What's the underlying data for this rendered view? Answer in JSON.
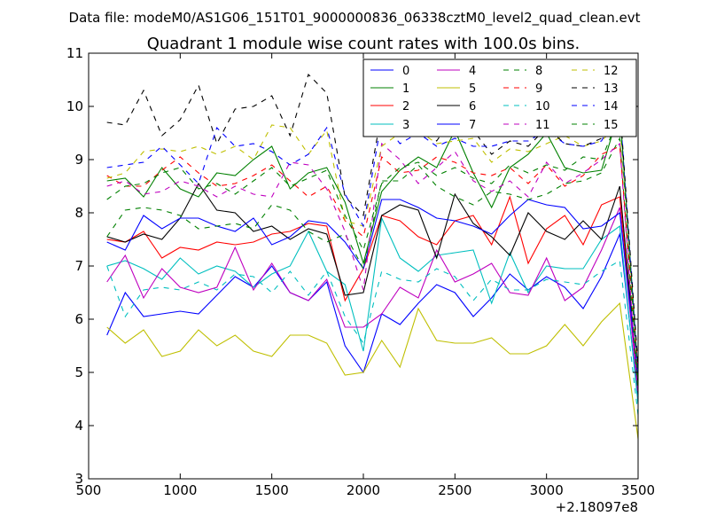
{
  "header": {
    "data_file": "Data file: modeM0/AS1G06_151T01_9000000836_06338cztM0_level2_quad_clean.evt"
  },
  "chart_data": {
    "type": "line",
    "title": "Quadrant 1 module wise count rates with 100.0s bins.",
    "xlabel": "",
    "ylabel": "",
    "x_offset_label": "+2.18097e8",
    "xlim": [
      500,
      3500
    ],
    "ylim": [
      3,
      11
    ],
    "x_ticks": [
      500,
      1000,
      1500,
      2000,
      2500,
      3000,
      3500
    ],
    "x_tick_labels": [
      "500",
      "1000",
      "1500",
      "2000",
      "2500",
      "3000",
      "3500"
    ],
    "y_ticks": [
      3,
      4,
      5,
      6,
      7,
      8,
      9,
      10,
      11
    ],
    "y_tick_labels": [
      "3",
      "4",
      "5",
      "6",
      "7",
      "8",
      "9",
      "10",
      "11"
    ],
    "legend_position": "top-right",
    "x": [
      600,
      700,
      800,
      900,
      1000,
      1100,
      1200,
      1300,
      1400,
      1500,
      1600,
      1700,
      1800,
      1900,
      2000,
      2100,
      2200,
      2300,
      2400,
      2500,
      2600,
      2700,
      2800,
      2900,
      3000,
      3100,
      3200,
      3300,
      3400,
      3500
    ],
    "series": [
      {
        "name": "0",
        "color": "#0000ff",
        "dash": "solid",
        "values": [
          5.7,
          6.5,
          6.05,
          6.1,
          6.15,
          6.1,
          6.45,
          6.8,
          6.6,
          7.0,
          6.5,
          6.35,
          6.7,
          5.5,
          5.0,
          6.1,
          5.9,
          6.3,
          6.65,
          6.5,
          6.05,
          6.4,
          6.85,
          6.55,
          6.8,
          6.6,
          6.2,
          6.8,
          7.6,
          4.5
        ]
      },
      {
        "name": "1",
        "color": "#008000",
        "dash": "solid",
        "values": [
          8.6,
          8.65,
          8.3,
          8.85,
          8.45,
          8.3,
          8.75,
          8.7,
          9.0,
          9.25,
          8.45,
          8.75,
          8.85,
          8.2,
          7.05,
          8.4,
          8.8,
          9.05,
          8.85,
          9.55,
          8.75,
          8.1,
          8.85,
          9.1,
          9.5,
          8.85,
          8.75,
          8.8,
          9.95,
          5.0
        ]
      },
      {
        "name": "2",
        "color": "#ff0000",
        "dash": "solid",
        "values": [
          7.5,
          7.45,
          7.65,
          7.15,
          7.35,
          7.3,
          7.45,
          7.4,
          7.45,
          7.6,
          7.65,
          7.8,
          7.75,
          6.35,
          6.95,
          7.95,
          7.85,
          7.55,
          7.4,
          7.85,
          7.95,
          7.4,
          8.3,
          7.05,
          7.7,
          7.95,
          7.4,
          8.15,
          8.3,
          4.7
        ]
      },
      {
        "name": "3",
        "color": "#00bfbf",
        "dash": "solid",
        "values": [
          7.0,
          7.1,
          6.95,
          6.75,
          7.15,
          6.85,
          7.0,
          6.9,
          6.6,
          6.85,
          7.0,
          7.65,
          6.9,
          6.65,
          5.4,
          7.9,
          7.15,
          6.9,
          7.2,
          7.25,
          7.3,
          6.3,
          7.25,
          6.5,
          7.0,
          6.95,
          6.95,
          7.5,
          7.75,
          4.4
        ]
      },
      {
        "name": "4",
        "color": "#bf00bf",
        "dash": "solid",
        "values": [
          6.7,
          7.2,
          6.4,
          6.95,
          6.6,
          6.5,
          6.6,
          7.35,
          6.55,
          7.05,
          6.5,
          6.35,
          6.75,
          5.85,
          5.85,
          6.1,
          6.6,
          6.4,
          7.3,
          6.7,
          6.85,
          7.05,
          6.5,
          6.45,
          7.15,
          6.35,
          6.6,
          7.3,
          8.1,
          4.6
        ]
      },
      {
        "name": "5",
        "color": "#bfbf00",
        "dash": "solid",
        "values": [
          5.85,
          5.55,
          5.8,
          5.3,
          5.4,
          5.8,
          5.5,
          5.7,
          5.4,
          5.3,
          5.7,
          5.7,
          5.55,
          4.95,
          5.0,
          5.6,
          5.1,
          6.2,
          5.6,
          5.55,
          5.55,
          5.65,
          5.35,
          5.35,
          5.5,
          5.9,
          5.5,
          5.95,
          6.3,
          3.75
        ]
      },
      {
        "name": "6",
        "color": "#000000",
        "dash": "solid",
        "values": [
          7.55,
          7.45,
          7.6,
          7.5,
          7.9,
          8.55,
          8.05,
          8.0,
          7.65,
          7.75,
          7.5,
          7.7,
          7.6,
          6.45,
          6.5,
          7.95,
          8.15,
          8.05,
          7.15,
          8.35,
          7.8,
          7.55,
          7.2,
          8.0,
          7.65,
          7.5,
          7.85,
          7.5,
          8.5,
          4.8
        ]
      },
      {
        "name": "7",
        "color": "#0000ff",
        "dash": "solid",
        "values": [
          7.45,
          7.3,
          7.95,
          7.7,
          7.9,
          7.9,
          7.75,
          7.65,
          7.9,
          7.4,
          7.55,
          7.85,
          7.8,
          7.45,
          6.95,
          8.25,
          8.25,
          8.1,
          7.9,
          7.85,
          7.75,
          7.6,
          7.95,
          8.25,
          8.15,
          8.1,
          7.7,
          7.75,
          8.0,
          4.9
        ]
      },
      {
        "name": "8",
        "color": "#008000",
        "dash": "dash",
        "values": [
          7.55,
          8.05,
          8.1,
          8.05,
          7.95,
          7.7,
          7.75,
          7.8,
          7.7,
          8.15,
          8.05,
          7.65,
          7.45,
          7.6,
          6.95,
          8.6,
          8.6,
          8.9,
          8.5,
          8.3,
          8.15,
          8.4,
          8.35,
          8.25,
          8.35,
          8.55,
          8.6,
          8.75,
          9.4,
          4.6
        ]
      },
      {
        "name": "9",
        "color": "#ff0000",
        "dash": "dash",
        "values": [
          8.7,
          8.5,
          8.5,
          8.8,
          9.05,
          8.75,
          8.5,
          8.55,
          8.7,
          8.9,
          8.6,
          8.3,
          8.5,
          7.85,
          7.55,
          9.05,
          8.75,
          8.8,
          9.05,
          8.95,
          8.75,
          8.7,
          8.85,
          8.55,
          8.9,
          8.5,
          8.7,
          9.1,
          9.25,
          5.0
        ]
      },
      {
        "name": "10",
        "color": "#00bfbf",
        "dash": "dash",
        "values": [
          7.0,
          6.05,
          6.55,
          6.6,
          6.55,
          6.7,
          6.55,
          6.85,
          6.8,
          6.5,
          6.9,
          6.45,
          6.9,
          6.05,
          5.55,
          6.9,
          6.75,
          6.7,
          6.95,
          6.8,
          6.35,
          6.75,
          6.55,
          6.55,
          6.75,
          6.7,
          6.65,
          6.9,
          7.1,
          4.2
        ]
      },
      {
        "name": "11",
        "color": "#bf00bf",
        "dash": "dash",
        "values": [
          8.5,
          8.6,
          8.35,
          8.4,
          8.6,
          8.5,
          8.3,
          8.5,
          8.35,
          8.3,
          8.95,
          8.9,
          8.45,
          7.65,
          6.55,
          9.3,
          9.0,
          8.55,
          8.85,
          9.15,
          8.6,
          8.4,
          8.6,
          8.3,
          8.95,
          8.55,
          8.75,
          9.0,
          9.3,
          4.5
        ]
      },
      {
        "name": "12",
        "color": "#bfbf00",
        "dash": "dash",
        "values": [
          8.65,
          8.75,
          9.15,
          9.2,
          9.15,
          9.25,
          9.1,
          9.25,
          9.0,
          9.65,
          9.6,
          9.1,
          9.55,
          7.85,
          7.75,
          9.25,
          9.5,
          9.55,
          9.3,
          9.35,
          9.4,
          8.95,
          9.2,
          9.15,
          9.3,
          9.45,
          9.25,
          9.35,
          9.7,
          5.0
        ]
      },
      {
        "name": "13",
        "color": "#000000",
        "dash": "dash",
        "values": [
          9.7,
          9.65,
          10.3,
          9.45,
          9.75,
          10.4,
          9.3,
          9.95,
          10.0,
          10.2,
          9.45,
          10.6,
          10.25,
          8.3,
          7.95,
          9.9,
          9.6,
          9.8,
          9.35,
          9.85,
          9.55,
          9.1,
          9.35,
          9.25,
          9.6,
          9.3,
          9.25,
          9.4,
          10.05,
          5.1
        ]
      },
      {
        "name": "14",
        "color": "#0000ff",
        "dash": "dash",
        "values": [
          8.85,
          8.9,
          8.95,
          9.25,
          8.9,
          8.55,
          9.6,
          9.25,
          9.3,
          9.15,
          8.9,
          9.1,
          9.6,
          8.35,
          7.75,
          9.75,
          9.3,
          9.5,
          9.25,
          9.4,
          9.25,
          9.25,
          9.35,
          9.35,
          9.55,
          9.3,
          9.25,
          9.35,
          10.0,
          4.9
        ]
      },
      {
        "name": "15",
        "color": "#008000",
        "dash": "dash",
        "values": [
          8.25,
          8.5,
          8.55,
          8.75,
          8.85,
          8.45,
          8.55,
          8.35,
          8.6,
          8.85,
          8.5,
          8.65,
          8.8,
          7.95,
          7.3,
          8.55,
          8.85,
          8.95,
          8.7,
          8.85,
          8.65,
          8.55,
          8.9,
          8.75,
          8.9,
          8.8,
          9.05,
          9.0,
          9.85,
          4.8
        ]
      }
    ]
  }
}
